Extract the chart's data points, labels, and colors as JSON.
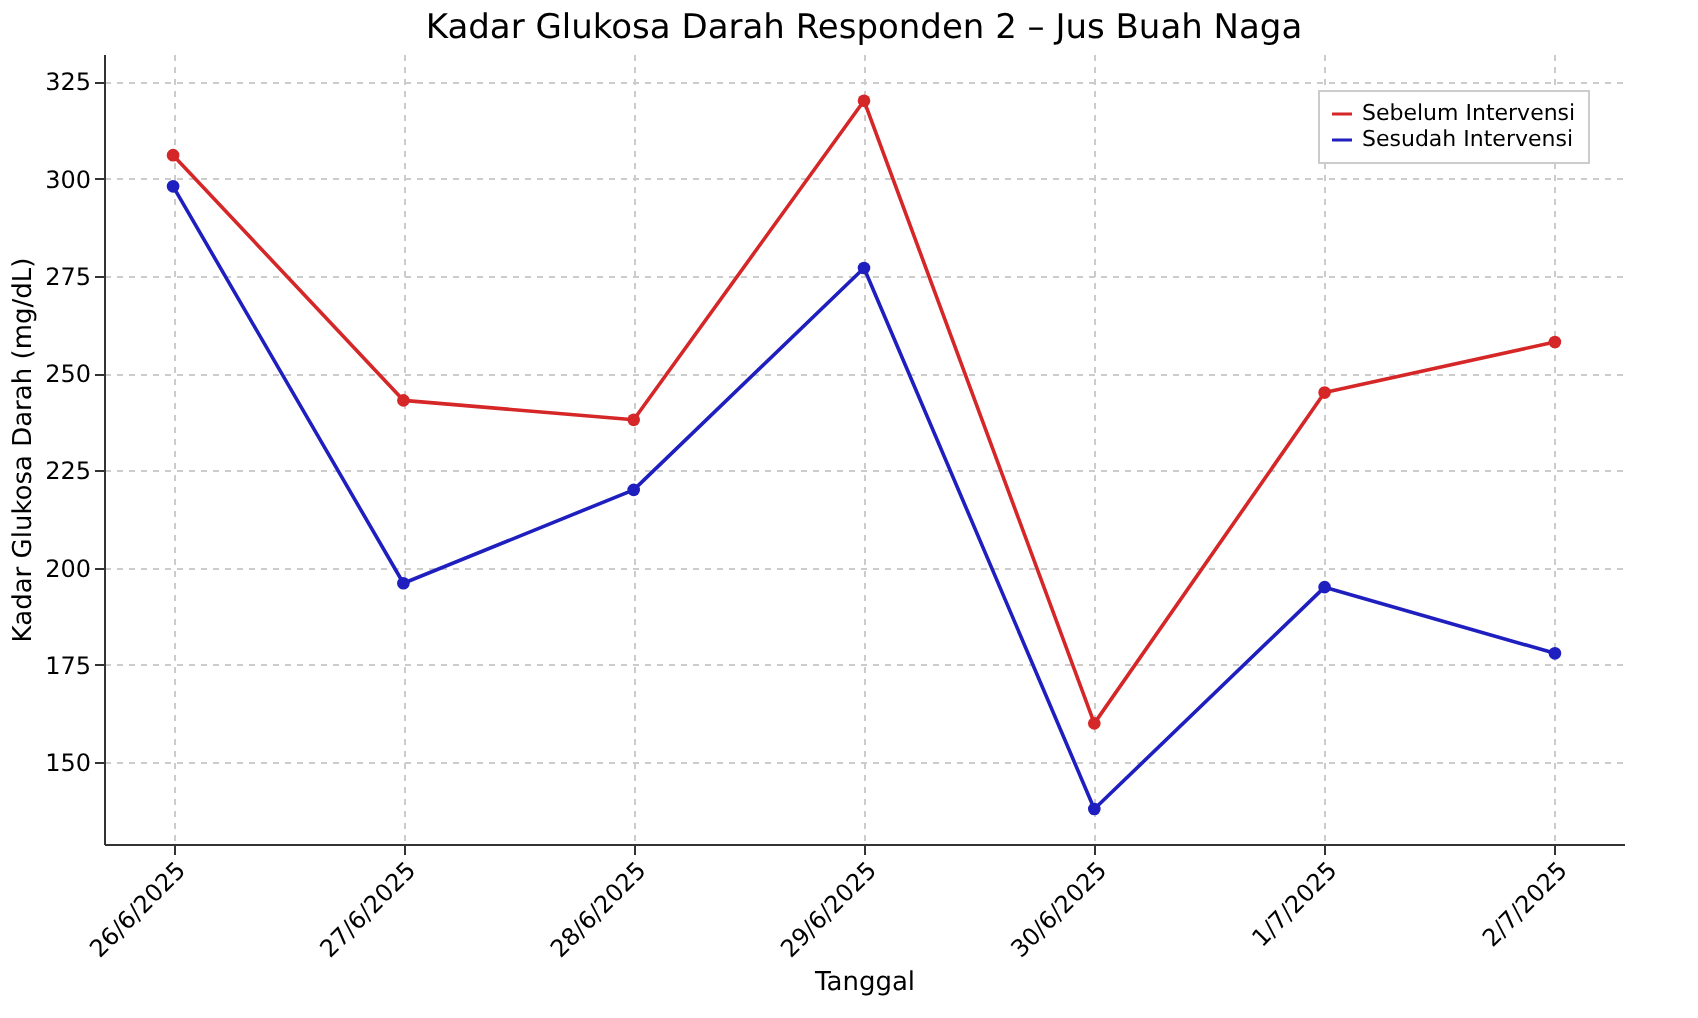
{
  "chart_data": {
    "type": "line",
    "title": "Kadar Glukosa Darah Responden 2 – Jus Buah Naga",
    "xlabel": "Tanggal",
    "ylabel": "Kadar Glukosa Darah (mg/dL)",
    "categories": [
      "26/6/2025",
      "27/6/2025",
      "28/6/2025",
      "29/6/2025",
      "30/6/2025",
      "1/7/2025",
      "2/7/2025"
    ],
    "series": [
      {
        "name": "Sebelum Intervensi",
        "color": "#d62728",
        "values": [
          306,
          243,
          238,
          320,
          160,
          245,
          258
        ]
      },
      {
        "name": "Sesudah Intervensi",
        "color": "#1f1fbf",
        "values": [
          298,
          196,
          220,
          277,
          138,
          195,
          178
        ]
      }
    ],
    "ylim": [
      129,
      332
    ],
    "yticks": [
      150,
      175,
      200,
      225,
      250,
      275,
      300,
      325
    ],
    "grid": true,
    "legend": "top right",
    "marker": "circle",
    "line_style": "solid"
  }
}
